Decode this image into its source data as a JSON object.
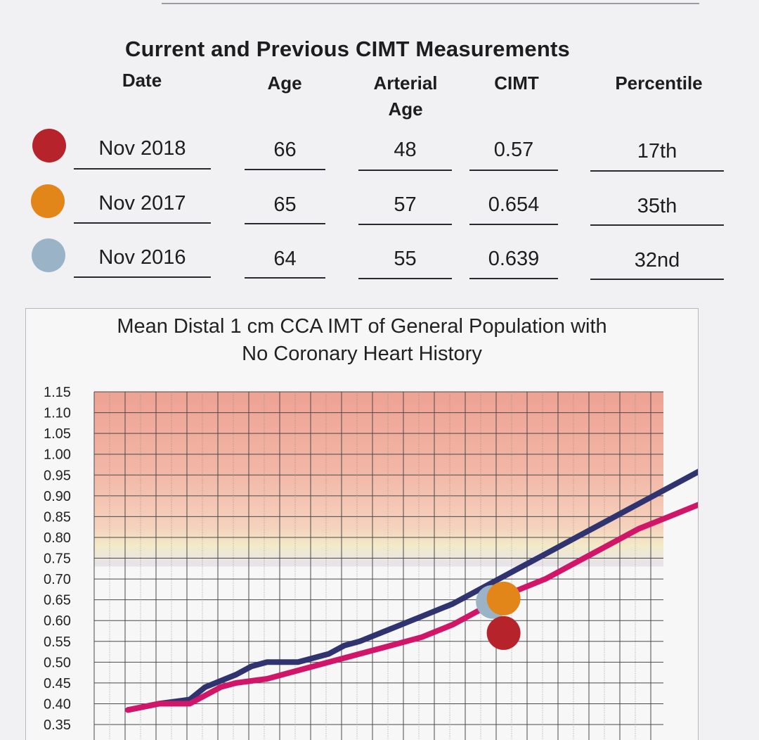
{
  "table": {
    "title": "Current and Previous CIMT Measurements",
    "headers": {
      "date": "Date",
      "age": "Age",
      "arterial_age_1": "Arterial",
      "arterial_age_2": "Age",
      "cimt": "CIMT",
      "percentile": "Percentile"
    },
    "rows": [
      {
        "date": "Nov 2018",
        "age": "66",
        "arterial_age": "48",
        "cimt": "0.57",
        "percentile": "17th",
        "color": "#b7232a"
      },
      {
        "date": "Nov 2017",
        "age": "65",
        "arterial_age": "57",
        "cimt": "0.654",
        "percentile": "35th",
        "color": "#e2861a"
      },
      {
        "date": "Nov 2016",
        "age": "64",
        "arterial_age": "55",
        "cimt": "0.639",
        "percentile": "32nd",
        "color": "#9ab3c6"
      }
    ]
  },
  "chart_data": {
    "type": "line",
    "title_line1": "Mean Distal 1 cm CCA IMT of General Population with",
    "title_line2": "No Coronary Heart History",
    "ylim": [
      0.35,
      1.15
    ],
    "y_ticks": [
      "1.15",
      "1.10",
      "1.05",
      "1.00",
      "0.95",
      "0.90",
      "0.85",
      "0.80",
      "0.75",
      "0.70",
      "0.65",
      "0.60",
      "0.55",
      "0.50",
      "0.45",
      "0.40",
      "0.35"
    ],
    "x_range": [
      0,
      36
    ],
    "x_note": "age axis not labeled in visible area; x values are grid column indices",
    "grid": true,
    "series": [
      {
        "color": "#2f3470",
        "points": [
          [
            0,
            0.385
          ],
          [
            2,
            0.4
          ],
          [
            4,
            0.41
          ],
          [
            5,
            0.44
          ],
          [
            7,
            0.47
          ],
          [
            8,
            0.49
          ],
          [
            9,
            0.5
          ],
          [
            11,
            0.5
          ],
          [
            12,
            0.51
          ],
          [
            13,
            0.52
          ],
          [
            14,
            0.54
          ],
          [
            15,
            0.55
          ],
          [
            17,
            0.58
          ],
          [
            19,
            0.61
          ],
          [
            21,
            0.64
          ],
          [
            23,
            0.68
          ],
          [
            25,
            0.72
          ],
          [
            27,
            0.76
          ],
          [
            29,
            0.8
          ],
          [
            31,
            0.84
          ],
          [
            33,
            0.88
          ],
          [
            35,
            0.92
          ],
          [
            37,
            0.96
          ]
        ]
      },
      {
        "color": "#d1166a",
        "points": [
          [
            0,
            0.385
          ],
          [
            2,
            0.4
          ],
          [
            4,
            0.4
          ],
          [
            5,
            0.42
          ],
          [
            6,
            0.44
          ],
          [
            7,
            0.45
          ],
          [
            9,
            0.46
          ],
          [
            11,
            0.48
          ],
          [
            13,
            0.5
          ],
          [
            14,
            0.51
          ],
          [
            15,
            0.52
          ],
          [
            17,
            0.54
          ],
          [
            19,
            0.56
          ],
          [
            21,
            0.59
          ],
          [
            23,
            0.63
          ],
          [
            25,
            0.67
          ],
          [
            27,
            0.7
          ],
          [
            29,
            0.74
          ],
          [
            31,
            0.78
          ],
          [
            33,
            0.82
          ],
          [
            35,
            0.85
          ],
          [
            37,
            0.88
          ]
        ]
      }
    ],
    "markers": [
      {
        "label": "Nov 2016",
        "x": 23.6,
        "y": 0.645,
        "color": "#9ab3c6"
      },
      {
        "label": "Nov 2017",
        "x": 24.3,
        "y": 0.653,
        "color": "#e2861a"
      },
      {
        "label": "Nov 2018",
        "x": 24.3,
        "y": 0.57,
        "color": "#b7232a"
      }
    ]
  }
}
